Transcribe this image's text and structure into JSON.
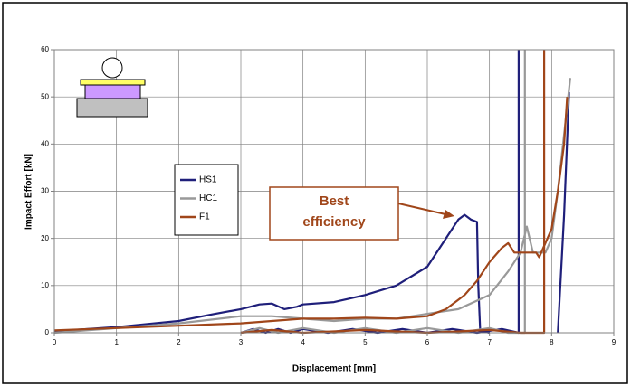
{
  "chart_data": {
    "type": "line",
    "xlabel": "Displacement [mm]",
    "ylabel": "Impact Effort [kN]",
    "xlim": [
      0,
      9
    ],
    "xticks": [
      0,
      1,
      2,
      3,
      4,
      5,
      6,
      7,
      8,
      9
    ],
    "ylim": [
      0,
      60
    ],
    "yticks": [
      0,
      10,
      20,
      30,
      40,
      50,
      60
    ],
    "grid": true,
    "annotation": [
      "Best",
      "efficiency"
    ],
    "series": [
      {
        "name": "HS1",
        "color": "#1f1f7a",
        "x": [
          0,
          1,
          2,
          2.5,
          3,
          3.3,
          3.5,
          3.7,
          3.9,
          4,
          4.5,
          5,
          5.5,
          6,
          6.2,
          6.5,
          6.6,
          6.7,
          6.8,
          6.82,
          6.85,
          7,
          null,
          3,
          3.2,
          3.4,
          3.6,
          3.8,
          4,
          4.4,
          4.8,
          5.2,
          5.6,
          6,
          6.4,
          6.8,
          7.2,
          7.47,
          7.47,
          null,
          8.1,
          8.2,
          8.28
        ],
        "y": [
          0.3,
          1.2,
          2.5,
          3.8,
          5,
          6,
          6.2,
          5,
          5.5,
          6,
          6.5,
          8,
          10,
          14,
          18,
          24,
          25,
          24,
          23.5,
          10,
          0.5,
          0,
          null,
          0,
          0.8,
          0,
          0.8,
          0,
          0.8,
          0,
          0.8,
          0,
          0.8,
          0,
          0.8,
          0,
          0.8,
          0,
          60,
          null,
          0,
          25,
          51
        ]
      },
      {
        "name": "HC1",
        "color": "#999999",
        "x": [
          0,
          1,
          2,
          3,
          3.5,
          4,
          4.5,
          5,
          5.5,
          6,
          6.5,
          7,
          7.3,
          7.5,
          7.6,
          7.7,
          7.9,
          8,
          8.1,
          8.2,
          8.3,
          null,
          3,
          3.3,
          3.6,
          4,
          4.5,
          5,
          5.5,
          6,
          6.5,
          7,
          7.3,
          7.57,
          7.57
        ],
        "y": [
          0,
          1,
          2,
          3.5,
          3.5,
          3,
          2.5,
          3,
          3,
          4,
          5,
          8,
          13,
          17,
          22.5,
          17,
          17,
          20,
          30,
          42,
          54,
          null,
          0,
          1,
          0,
          1,
          0,
          1,
          0,
          1,
          0,
          1,
          0,
          0,
          60
        ]
      },
      {
        "name": "F1",
        "color": "#a0461a",
        "x": [
          0,
          1,
          2,
          3,
          3.5,
          4,
          4.5,
          5,
          5.5,
          6,
          6.3,
          6.6,
          6.8,
          7,
          7.2,
          7.3,
          7.4,
          7.6,
          7.75,
          7.8,
          8,
          8.1,
          8.2,
          8.25,
          null,
          3,
          3.5,
          4,
          5,
          6,
          7,
          7.5,
          7.88,
          7.88
        ],
        "y": [
          0.5,
          1,
          1.5,
          2,
          2.5,
          3,
          3,
          3.2,
          3,
          3.5,
          5,
          8,
          11,
          15,
          18,
          19,
          17,
          17,
          17,
          16,
          22,
          30,
          40,
          50,
          null,
          0,
          0.6,
          0,
          0.6,
          0,
          0.6,
          0,
          0,
          60
        ]
      }
    ]
  }
}
